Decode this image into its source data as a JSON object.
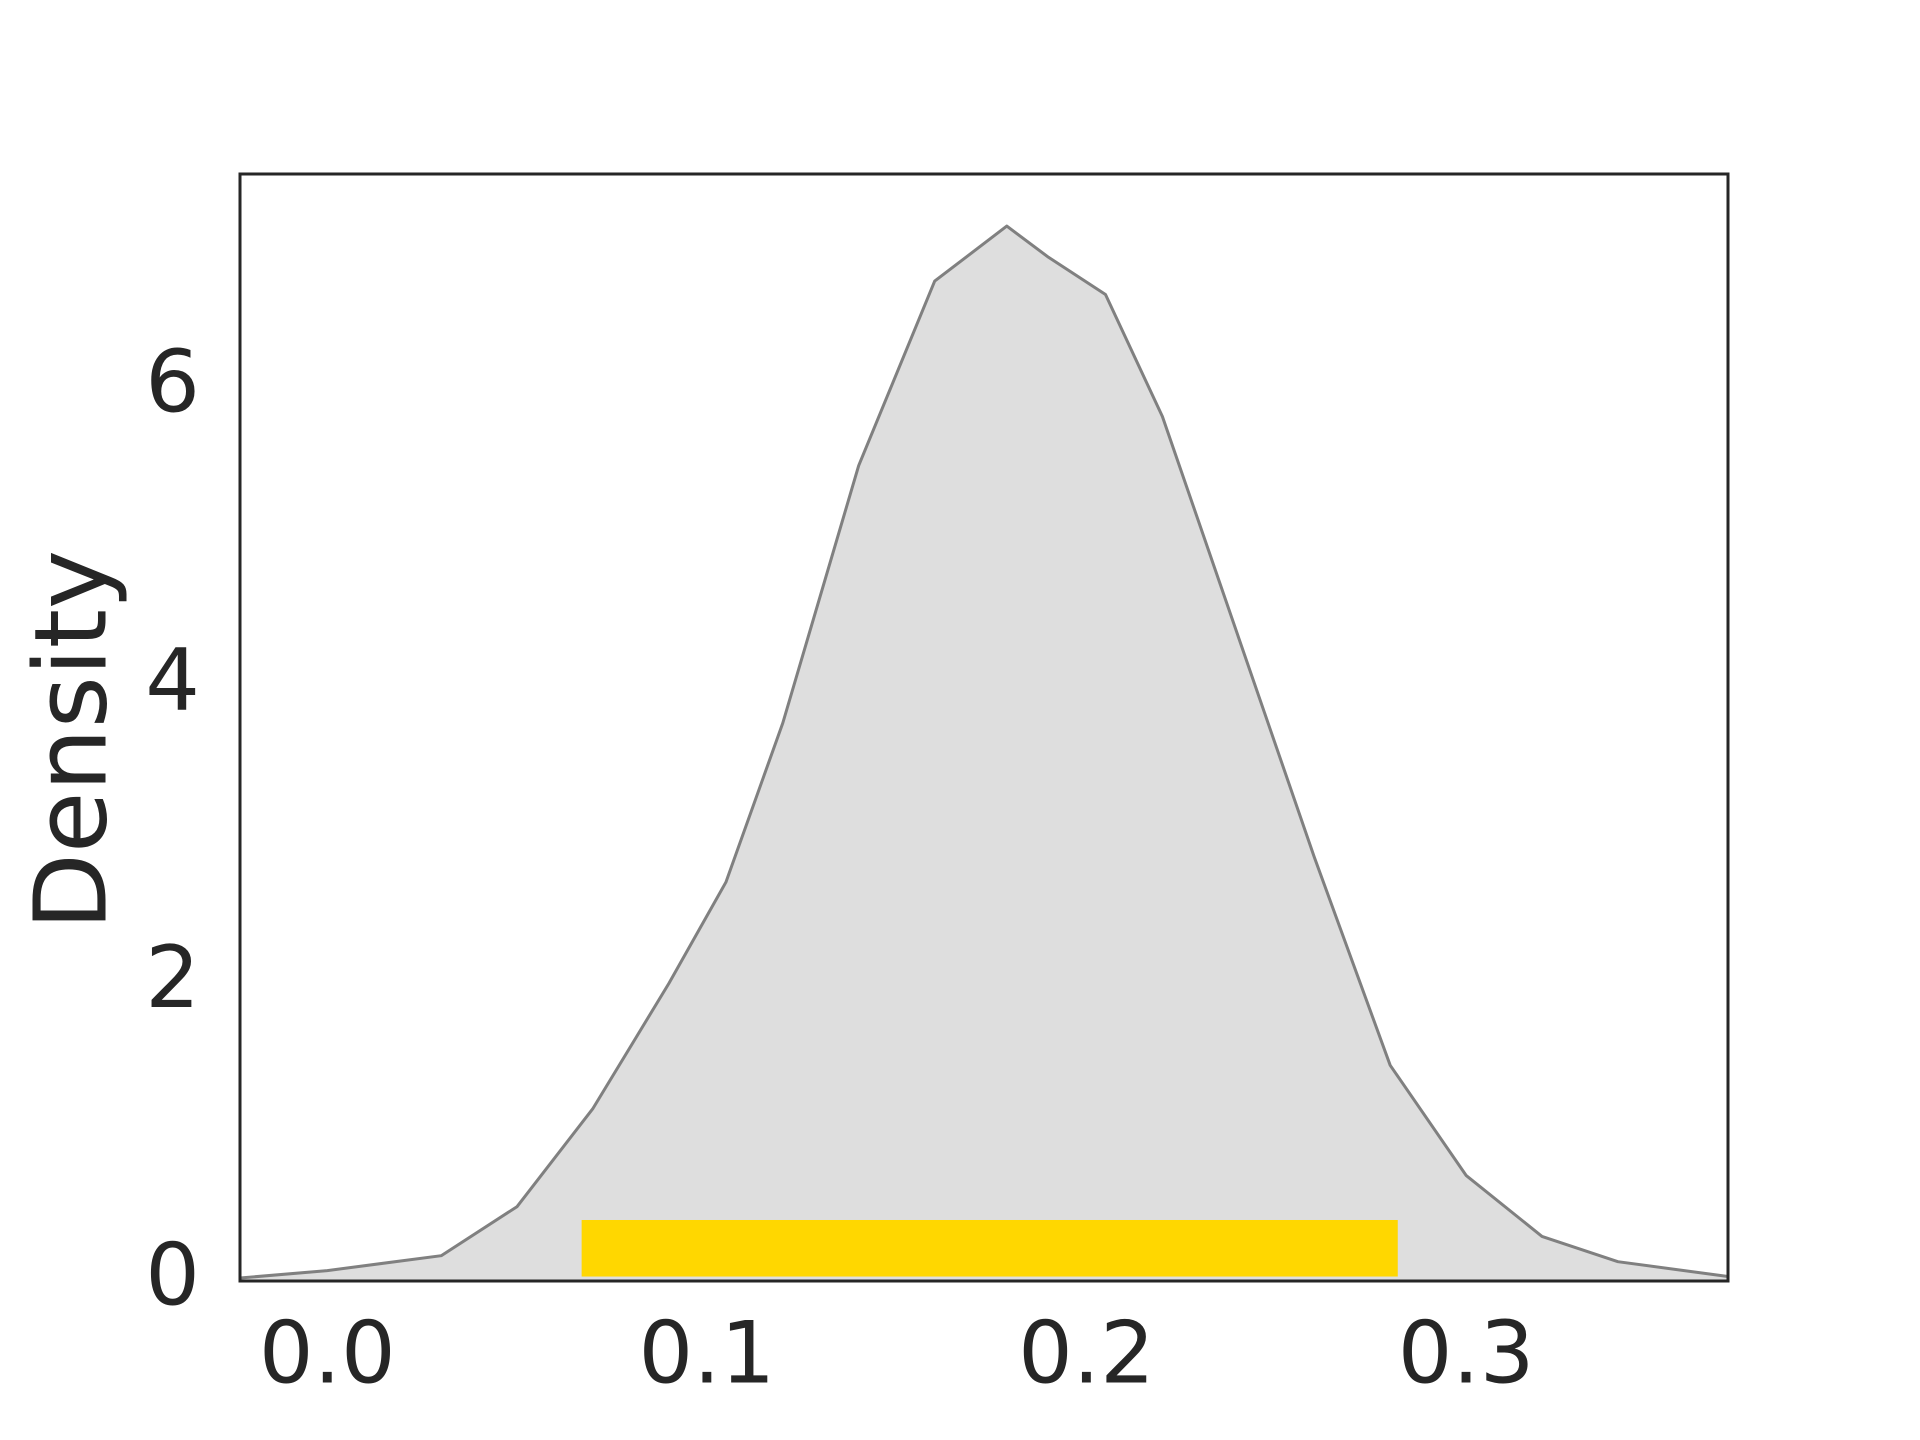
{
  "chart_data": {
    "type": "area",
    "y_label": "Density",
    "x": [
      -0.023,
      0.0,
      0.03,
      0.05,
      0.07,
      0.09,
      0.105,
      0.12,
      0.14,
      0.16,
      0.179,
      0.19,
      0.205,
      0.22,
      0.24,
      0.26,
      0.28,
      0.3,
      0.32,
      0.34,
      0.369
    ],
    "series": [
      {
        "color": "#808080",
        "fill": "#dedede",
        "values": [
          0.02,
          0.07,
          0.17,
          0.5,
          1.16,
          2.0,
          2.68,
          3.75,
          5.48,
          6.72,
          7.09,
          6.88,
          6.63,
          5.81,
          4.33,
          2.85,
          1.45,
          0.71,
          0.3,
          0.13,
          0.03
        ]
      }
    ],
    "interval": {
      "x": [
        0.067,
        0.282
      ],
      "y": [
        0.03,
        0.41
      ],
      "color": "#ffd700"
    },
    "xlim": [
      -0.023,
      0.369
    ],
    "ylim": [
      0,
      7.44
    ],
    "xticks": [
      {
        "value": 0,
        "label": "0.0"
      },
      0.1,
      0.2,
      0.3
    ],
    "yticks": [
      0,
      2,
      4,
      6
    ],
    "grid": false
  }
}
